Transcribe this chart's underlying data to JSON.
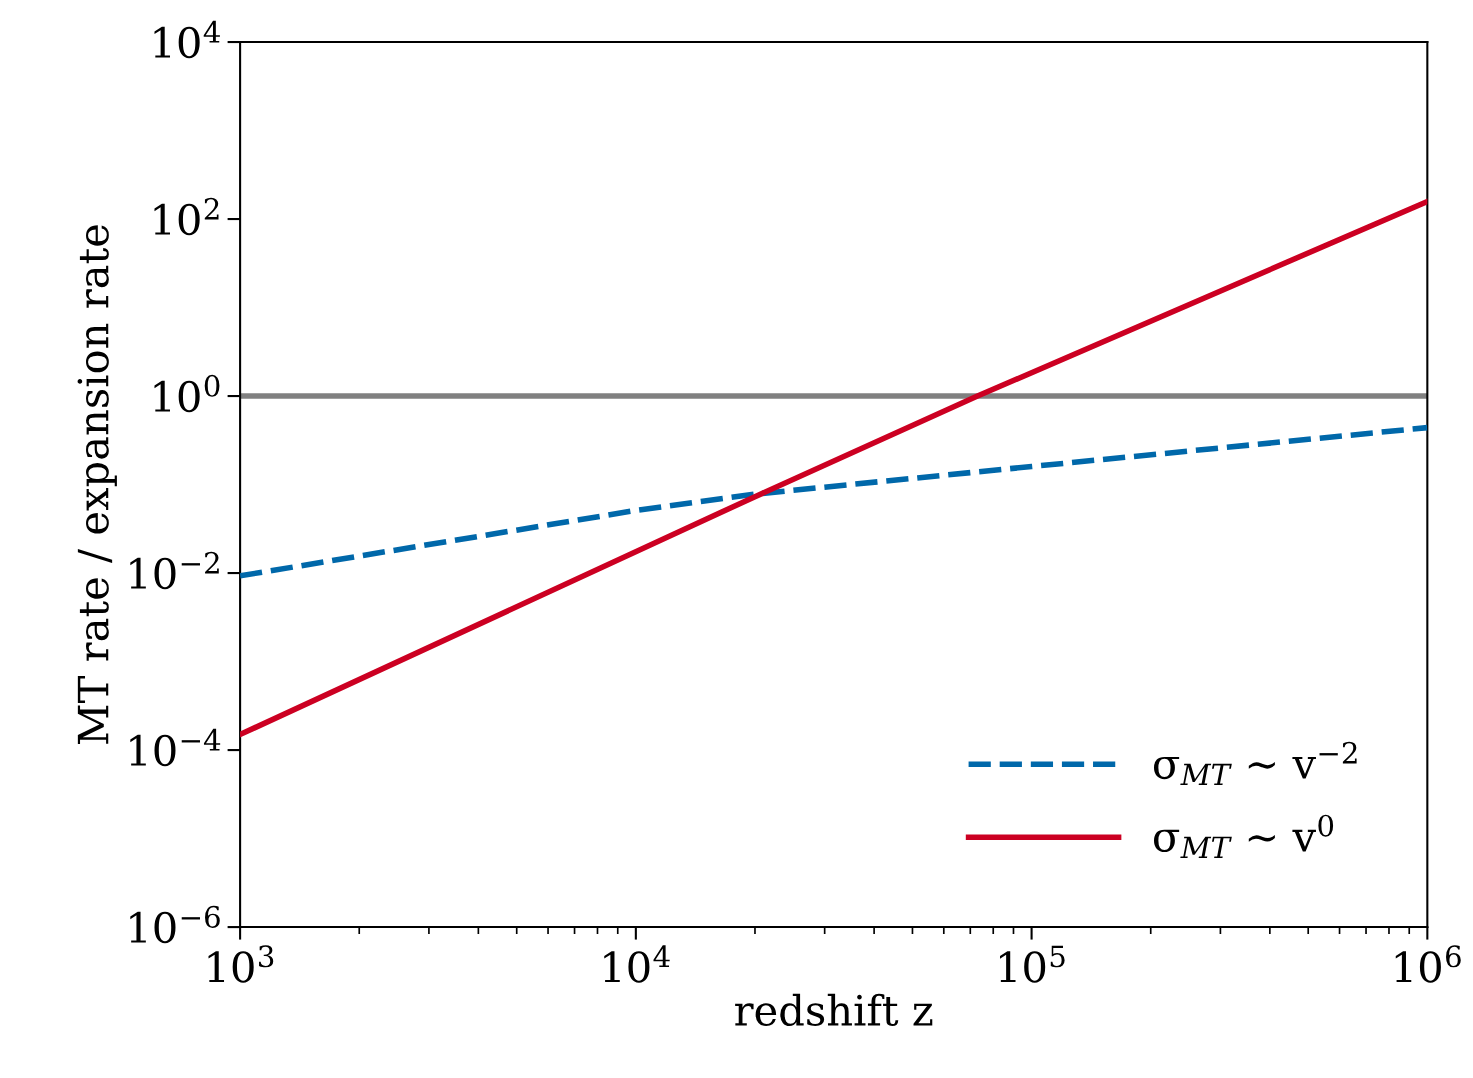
{
  "chart_data": {
    "type": "line",
    "xlabel": "redshift z",
    "ylabel": "MT rate / expansion rate",
    "log": "xy",
    "xlim": [
      1000,
      1000000
    ],
    "ylim": [
      1e-06,
      10000
    ],
    "xticks": [
      {
        "value": 1000,
        "label": "10$^{3}$"
      },
      {
        "value": 10000,
        "label": "10$^{4}$"
      },
      {
        "value": 100000,
        "label": "10$^{5}$"
      },
      {
        "value": 1000000,
        "label": "10$^{6}$"
      }
    ],
    "yticks": [
      {
        "value": 1e-06,
        "label": "10$^{−6}$"
      },
      {
        "value": 0.0001,
        "label": "10$^{−4}$"
      },
      {
        "value": 0.01,
        "label": "10$^{−2}$"
      },
      {
        "value": 1,
        "label": "10$^{0}$"
      },
      {
        "value": 100,
        "label": "10$^{2}$"
      },
      {
        "value": 10000,
        "label": "10$^{4}$"
      }
    ],
    "series": [
      {
        "name": "σ$_{MT}$ ∼ v$^{−2}$",
        "color": "#0068aa",
        "line_style": "dashed",
        "x": [
          1000,
          3000,
          10000,
          20000,
          100000,
          1000000
        ],
        "values": [
          0.0093,
          0.021,
          0.051,
          0.078,
          0.16,
          0.44
        ]
      },
      {
        "name": "σ$_{MT}$ ∼ v$^{0}$",
        "color": "#cc0022",
        "line_style": "solid",
        "x": [
          1000,
          20000,
          73000,
          1000000
        ],
        "values": [
          0.00015,
          0.073,
          1,
          158
        ]
      }
    ],
    "ref_lines": [
      {
        "axis": "y",
        "value": 1,
        "color": "#808080"
      }
    ],
    "legend": "bottom right",
    "grid": false
  }
}
